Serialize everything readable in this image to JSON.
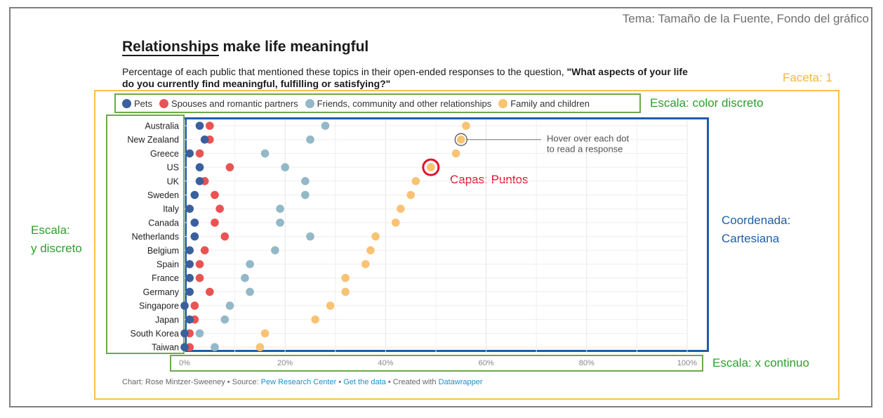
{
  "theme_label": "Tema: Tamaño de la Fuente, Fondo del gráfico",
  "facet_label": "Faceta: 1",
  "title_underlined": "Relationships",
  "title_rest": " make life meaningful",
  "subtitle_plain": "Percentage of each public that mentioned these topics in their open-ended responses to the question, ",
  "subtitle_bold": "\"What aspects of your life do you currently find meaningful, fulfilling or satisfying?\"",
  "annotations": {
    "color_scale": "Escala: color discreto",
    "y_scale_line1": "Escala:",
    "y_scale_line2": "y discreto",
    "coord_line1": "Coordenada:",
    "coord_line2": "Cartesiana",
    "layers": "Capas: Puntos",
    "x_scale": "Escala: x continuo"
  },
  "hover_note": [
    "Hover over each dot",
    "to read a response"
  ],
  "footer": {
    "prefix": "Chart: Rose Mintzer-Sweeney • Source: ",
    "source": "Pew Research Center",
    "sep": " • ",
    "get_data": "Get the data",
    "created": " • Created with ",
    "tool": "Datawrapper"
  },
  "chart_data": {
    "type": "scatter",
    "xlim": [
      0,
      100
    ],
    "x_ticks": [
      "0%",
      "20%",
      "40%",
      "60%",
      "80%",
      "100%"
    ],
    "grid": true,
    "legend_position": "top",
    "categories": [
      "Australia",
      "New Zealand",
      "Greece",
      "US",
      "UK",
      "Sweden",
      "Italy",
      "Canada",
      "Netherlands",
      "Belgium",
      "Spain",
      "France",
      "Germany",
      "Singapore",
      "Japan",
      "South Korea",
      "Taiwan"
    ],
    "series": [
      {
        "name": "Pets",
        "color": "#3a5f9c",
        "values": [
          3,
          4,
          1,
          3,
          3,
          2,
          1,
          2,
          2,
          1,
          1,
          1,
          1,
          0,
          1,
          0,
          0
        ]
      },
      {
        "name": "Spouses and romantic partners",
        "color": "#ea5353",
        "values": [
          5,
          5,
          3,
          9,
          4,
          6,
          7,
          6,
          8,
          4,
          3,
          3,
          5,
          2,
          2,
          1,
          1
        ]
      },
      {
        "name": "Friends, community and other relationships",
        "color": "#93b8c8",
        "values": [
          28,
          25,
          16,
          20,
          24,
          24,
          19,
          19,
          25,
          18,
          13,
          12,
          13,
          9,
          8,
          3,
          6
        ]
      },
      {
        "name": "Family and children",
        "color": "#f9c373",
        "values": [
          56,
          55,
          54,
          49,
          46,
          45,
          43,
          42,
          38,
          37,
          36,
          32,
          32,
          29,
          26,
          16,
          15
        ]
      }
    ]
  }
}
